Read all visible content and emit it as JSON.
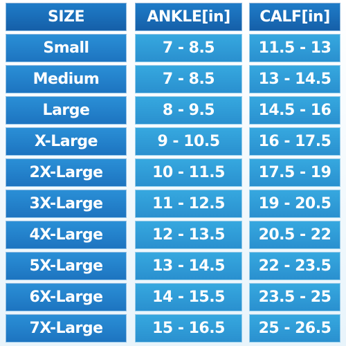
{
  "table": {
    "header": [
      "SIZE",
      "ANKLE[in]",
      "CALF[in]"
    ],
    "rows": [
      [
        "Small",
        "7 - 8.5",
        "11.5 - 13"
      ],
      [
        "Medium",
        "7 - 8.5",
        "13 - 14.5"
      ],
      [
        "Large",
        "8 - 9.5",
        "14.5 - 16"
      ],
      [
        "X-Large",
        "9 - 10.5",
        "16 - 17.5"
      ],
      [
        "2X-Large",
        "10 - 11.5",
        "17.5 - 19"
      ],
      [
        "3X-Large",
        "11 - 12.5",
        "19 - 20.5"
      ],
      [
        "4X-Large",
        "12 - 13.5",
        "20.5 - 22"
      ],
      [
        "5X-Large",
        "13 - 14.5",
        "22 - 23.5"
      ],
      [
        "6X-Large",
        "14 - 15.5",
        "23.5 - 25"
      ],
      [
        "7X-Large",
        "15 - 16.5",
        "25 - 26.5"
      ]
    ]
  }
}
